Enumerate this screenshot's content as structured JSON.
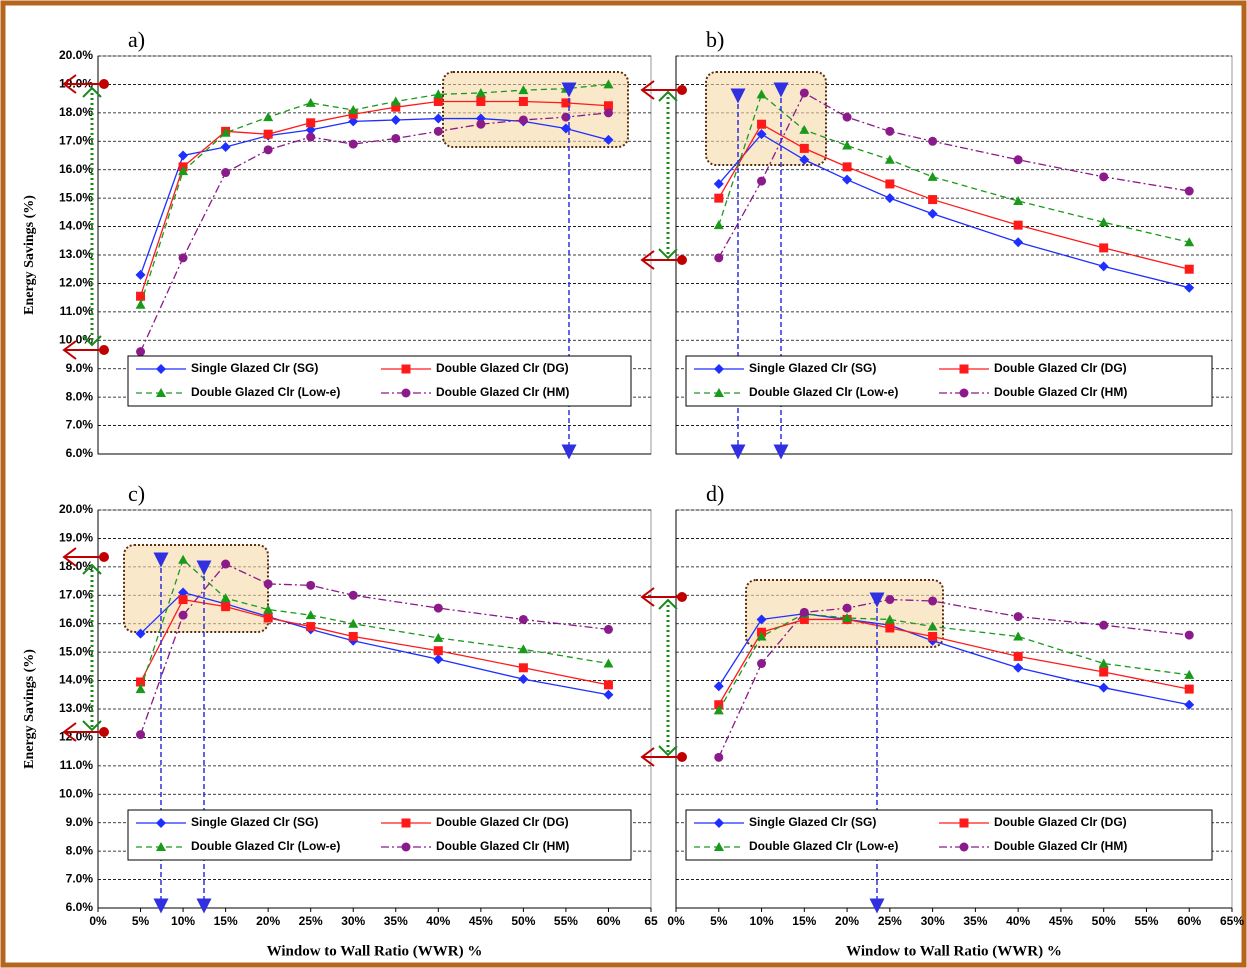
{
  "chart_data": [
    {
      "type": "line",
      "label": "a)",
      "y_label": "Energy Savings (%)",
      "x": [
        5,
        10,
        15,
        20,
        25,
        30,
        35,
        40,
        45,
        50,
        55,
        60
      ],
      "xlim": [
        0,
        65
      ],
      "ylim": [
        6,
        20
      ],
      "yticks": [
        {
          "value": 6,
          "label": "6.0%"
        },
        {
          "value": 7,
          "label": "7.0%"
        },
        {
          "value": 8,
          "label": "8.0%"
        },
        {
          "value": 9,
          "label": "9.0%"
        },
        {
          "value": 10,
          "label": "10.0%"
        },
        {
          "value": 11,
          "label": "11.0%"
        },
        {
          "value": 12,
          "label": "12.0%"
        },
        {
          "value": 13,
          "label": "13.0%"
        },
        {
          "value": 14,
          "label": "14.0%"
        },
        {
          "value": 15,
          "label": "15.0%"
        },
        {
          "value": 16,
          "label": "16.0%"
        },
        {
          "value": 17,
          "label": "17.0%"
        },
        {
          "value": 18,
          "label": "18.0%"
        },
        {
          "value": 19,
          "label": "19.0%"
        },
        {
          "value": 20,
          "label": "20.0%"
        }
      ],
      "grid": true,
      "series": [
        {
          "name": "Single Glazed Clr (SG)",
          "color": "#1f2fff",
          "marker": "diamond",
          "dash": "solid",
          "values": [
            12.3,
            16.5,
            16.8,
            17.2,
            17.4,
            17.7,
            17.75,
            17.8,
            17.8,
            17.7,
            17.45,
            17.05
          ]
        },
        {
          "name": "Double Glazed Clr (DG)",
          "color": "#ff1a1a",
          "marker": "square",
          "dash": "solid",
          "values": [
            11.55,
            16.1,
            17.35,
            17.25,
            17.65,
            17.95,
            18.2,
            18.4,
            18.4,
            18.4,
            18.35,
            18.25
          ]
        },
        {
          "name": "Double Glazed Clr (Low-e)",
          "color": "#1a9a1a",
          "marker": "triangle",
          "dash": "dashed",
          "values": [
            11.25,
            15.95,
            17.3,
            17.85,
            18.35,
            18.1,
            18.4,
            18.65,
            18.7,
            18.8,
            18.85,
            19.0
          ]
        },
        {
          "name": "Double Glazed Clr (HM)",
          "color": "#8b1a8b",
          "marker": "circle",
          "dash": "dashdot",
          "values": [
            9.6,
            12.9,
            15.9,
            16.7,
            17.15,
            16.9,
            17.1,
            17.35,
            17.6,
            17.75,
            17.85,
            18.0
          ]
        }
      ]
    },
    {
      "type": "line",
      "label": "b)",
      "x": [
        5,
        10,
        15,
        20,
        25,
        30,
        40,
        50,
        60
      ],
      "xlim": [
        0,
        65
      ],
      "ylim": [
        6,
        20
      ],
      "grid": true,
      "series": [
        {
          "name": "Single Glazed Clr (SG)",
          "color": "#1f2fff",
          "marker": "diamond",
          "dash": "solid",
          "values": [
            15.5,
            17.25,
            16.35,
            15.65,
            15.0,
            14.45,
            13.45,
            12.6,
            11.85
          ]
        },
        {
          "name": "Double Glazed Clr (DG)",
          "color": "#ff1a1a",
          "marker": "square",
          "dash": "solid",
          "values": [
            15.0,
            17.6,
            16.75,
            16.1,
            15.5,
            14.95,
            14.05,
            13.25,
            12.5
          ]
        },
        {
          "name": "Double Glazed Clr (Low-e)",
          "color": "#1a9a1a",
          "marker": "triangle",
          "dash": "dashed",
          "values": [
            14.05,
            18.65,
            17.4,
            16.85,
            16.35,
            15.75,
            14.9,
            14.15,
            13.45
          ]
        },
        {
          "name": "Double Glazed Clr (HM)",
          "color": "#8b1a8b",
          "marker": "circle",
          "dash": "dashdot",
          "values": [
            12.9,
            15.6,
            18.7,
            17.85,
            17.35,
            17.0,
            16.35,
            15.75,
            15.25
          ]
        }
      ]
    },
    {
      "type": "line",
      "label": "c)",
      "y_label": "Energy Savings (%)",
      "x_label": "Window  to Wall Ratio (WWR) %",
      "x": [
        5,
        10,
        15,
        20,
        25,
        30,
        40,
        50,
        60
      ],
      "xlim": [
        0,
        65
      ],
      "xticks": [
        {
          "value": 0,
          "label": "0%"
        },
        {
          "value": 5,
          "label": "5%"
        },
        {
          "value": 10,
          "label": "10%"
        },
        {
          "value": 15,
          "label": "15%"
        },
        {
          "value": 20,
          "label": "20%"
        },
        {
          "value": 25,
          "label": "25%"
        },
        {
          "value": 30,
          "label": "30%"
        },
        {
          "value": 35,
          "label": "35%"
        },
        {
          "value": 40,
          "label": "40%"
        },
        {
          "value": 45,
          "label": "45%"
        },
        {
          "value": 50,
          "label": "50%"
        },
        {
          "value": 55,
          "label": "55%"
        },
        {
          "value": 60,
          "label": "60%"
        },
        65
      ],
      "ylim": [
        6,
        20
      ],
      "yticks": [
        {
          "value": 6,
          "label": "6.0%"
        },
        {
          "value": 7,
          "label": "7.0%"
        },
        {
          "value": 8,
          "label": "8.0%"
        },
        {
          "value": 9,
          "label": "9.0%"
        },
        {
          "value": 10,
          "label": "10.0%"
        },
        {
          "value": 11,
          "label": "11.0%"
        },
        {
          "value": 12,
          "label": "12.0%"
        },
        {
          "value": 13,
          "label": "13.0%"
        },
        {
          "value": 14,
          "label": "14.0%"
        },
        {
          "value": 15,
          "label": "15.0%"
        },
        {
          "value": 16,
          "label": "16.0%"
        },
        {
          "value": 17,
          "label": "17.0%"
        },
        {
          "value": 18,
          "label": "18.0%"
        },
        {
          "value": 19,
          "label": "19.0%"
        },
        {
          "value": 20,
          "label": "20.0%"
        }
      ],
      "grid": true,
      "series": [
        {
          "name": "Single Glazed Clr (SG)",
          "color": "#1f2fff",
          "marker": "diamond",
          "dash": "solid",
          "values": [
            15.65,
            17.1,
            16.7,
            16.25,
            15.8,
            15.4,
            14.75,
            14.05,
            13.5
          ]
        },
        {
          "name": "Double Glazed Clr (DG)",
          "color": "#ff1a1a",
          "marker": "square",
          "dash": "solid",
          "values": [
            13.95,
            16.85,
            16.6,
            16.2,
            15.9,
            15.55,
            15.05,
            14.45,
            13.85
          ]
        },
        {
          "name": "Double Glazed Clr (Low-e)",
          "color": "#1a9a1a",
          "marker": "triangle",
          "dash": "dashed",
          "values": [
            13.7,
            18.25,
            16.9,
            16.5,
            16.3,
            16.0,
            15.5,
            15.1,
            14.6
          ]
        },
        {
          "name": "Double Glazed Clr (HM)",
          "color": "#8b1a8b",
          "marker": "circle",
          "dash": "dashdot",
          "values": [
            12.1,
            16.3,
            18.1,
            17.4,
            17.35,
            17.0,
            16.55,
            16.15,
            15.8
          ]
        }
      ]
    },
    {
      "type": "line",
      "label": "d)",
      "x_label": "Window  to Wall Ratio (WWR) %",
      "x": [
        5,
        10,
        15,
        20,
        25,
        30,
        40,
        50,
        60
      ],
      "xlim": [
        0,
        65
      ],
      "xticks": [
        {
          "value": 0,
          "label": "0%"
        },
        {
          "value": 5,
          "label": "5%"
        },
        {
          "value": 10,
          "label": "10%"
        },
        {
          "value": 15,
          "label": "15%"
        },
        {
          "value": 20,
          "label": "20%"
        },
        {
          "value": 25,
          "label": "25%"
        },
        {
          "value": 30,
          "label": "30%"
        },
        {
          "value": 35,
          "label": "35%"
        },
        {
          "value": 40,
          "label": "40%"
        },
        {
          "value": 45,
          "label": "45%"
        },
        {
          "value": 50,
          "label": "50%"
        },
        {
          "value": 55,
          "label": "55%"
        },
        {
          "value": 60,
          "label": "60%"
        },
        {
          "value": 65,
          "label": "65%"
        }
      ],
      "ylim": [
        6,
        20
      ],
      "grid": true,
      "series": [
        {
          "name": "Single Glazed Clr (SG)",
          "color": "#1f2fff",
          "marker": "diamond",
          "dash": "solid",
          "values": [
            13.8,
            16.15,
            16.35,
            16.15,
            15.95,
            15.4,
            14.45,
            13.75,
            13.15
          ]
        },
        {
          "name": "Double Glazed Clr (DG)",
          "color": "#ff1a1a",
          "marker": "square",
          "dash": "solid",
          "values": [
            13.15,
            15.7,
            16.15,
            16.15,
            15.85,
            15.55,
            14.85,
            14.3,
            13.7
          ]
        },
        {
          "name": "Double Glazed Clr (Low-e)",
          "color": "#1a9a1a",
          "marker": "triangle",
          "dash": "dashed",
          "values": [
            12.95,
            15.55,
            16.35,
            16.2,
            16.15,
            15.9,
            15.55,
            14.6,
            14.2
          ]
        },
        {
          "name": "Double Glazed Clr (HM)",
          "color": "#8b1a8b",
          "marker": "circle",
          "dash": "dashdot",
          "values": [
            11.3,
            14.6,
            16.4,
            16.55,
            16.85,
            16.8,
            16.25,
            15.95,
            15.6
          ]
        }
      ]
    }
  ]
}
